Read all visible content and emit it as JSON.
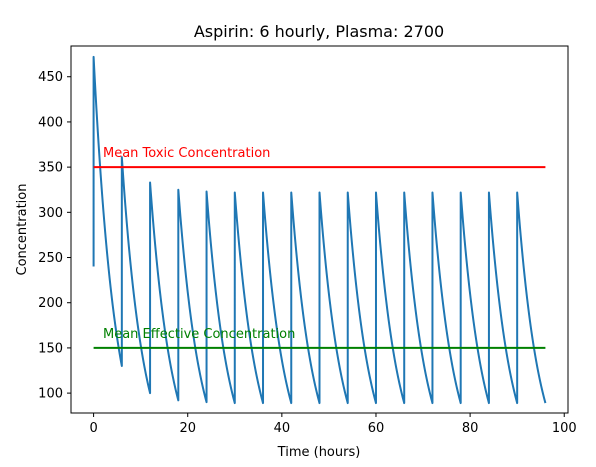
{
  "chart_data": {
    "type": "line",
    "title": "Aspirin: 6 hourly, Plasma: 2700",
    "xlabel": "Time (hours)",
    "ylabel": "Concentration",
    "xlim": [
      -4.8,
      100.8
    ],
    "ylim": [
      78,
      484
    ],
    "xticks": [
      0,
      20,
      40,
      60,
      80,
      100
    ],
    "xtick_labels": [
      "0",
      "20",
      "40",
      "60",
      "80",
      "100"
    ],
    "yticks": [
      100,
      150,
      200,
      250,
      300,
      350,
      400,
      450
    ],
    "ytick_labels": [
      "100",
      "150",
      "200",
      "250",
      "300",
      "350",
      "400",
      "450"
    ],
    "grid": false,
    "series": [
      {
        "color": "#1f77b4",
        "doses": [
          {
            "t_start": 0,
            "t_end": 6,
            "peak": 472,
            "trough": 130
          },
          {
            "t_start": 6,
            "t_end": 12,
            "peak": 361,
            "trough": 100
          },
          {
            "t_start": 12,
            "t_end": 18,
            "peak": 333,
            "trough": 92
          },
          {
            "t_start": 18,
            "t_end": 24,
            "peak": 325,
            "trough": 90
          },
          {
            "t_start": 24,
            "t_end": 30,
            "peak": 323,
            "trough": 89
          },
          {
            "t_start": 30,
            "t_end": 36,
            "peak": 322,
            "trough": 89
          },
          {
            "t_start": 36,
            "t_end": 42,
            "peak": 322,
            "trough": 89
          },
          {
            "t_start": 42,
            "t_end": 48,
            "peak": 322,
            "trough": 89
          },
          {
            "t_start": 48,
            "t_end": 54,
            "peak": 322,
            "trough": 89
          },
          {
            "t_start": 54,
            "t_end": 60,
            "peak": 322,
            "trough": 89
          },
          {
            "t_start": 60,
            "t_end": 66,
            "peak": 322,
            "trough": 89
          },
          {
            "t_start": 66,
            "t_end": 72,
            "peak": 322,
            "trough": 89
          },
          {
            "t_start": 72,
            "t_end": 78,
            "peak": 322,
            "trough": 89
          },
          {
            "t_start": 78,
            "t_end": 84,
            "peak": 322,
            "trough": 89
          },
          {
            "t_start": 84,
            "t_end": 90,
            "peak": 322,
            "trough": 89
          },
          {
            "t_start": 90,
            "t_end": 96,
            "peak": 322,
            "trough": 89
          }
        ],
        "initial_value": 240
      }
    ],
    "reference_lines": [
      {
        "label": "Mean Toxic Concentration",
        "y": 350,
        "x": [
          0,
          96
        ],
        "color": "#ff0000",
        "label_x": 2
      },
      {
        "label": "Mean Effective Concentration",
        "y": 150,
        "x": [
          0,
          96
        ],
        "color": "#008000",
        "label_x": 2
      }
    ]
  }
}
